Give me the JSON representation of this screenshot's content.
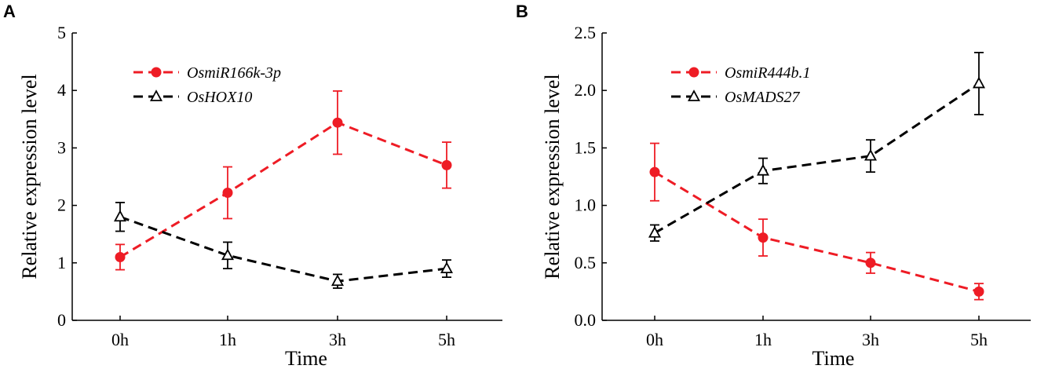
{
  "colors": {
    "red": "#ee1c25",
    "black": "#000000"
  },
  "chart_data": [
    {
      "panel": "A",
      "type": "line",
      "categories": [
        "0h",
        "1h",
        "3h",
        "5h"
      ],
      "xlabel": "Time",
      "ylabel": "Relative expression level",
      "ylim": [
        0,
        5
      ],
      "yticks": [
        "0",
        "1",
        "2",
        "3",
        "4",
        "5"
      ],
      "legend_position": "top-left",
      "series": [
        {
          "name": "OsmiR166k-3p",
          "color": "red",
          "marker": "circle",
          "values": [
            1.1,
            2.22,
            3.44,
            2.7
          ],
          "errors": [
            0.22,
            0.45,
            0.55,
            0.4
          ]
        },
        {
          "name": "OsHOX10",
          "color": "black",
          "marker": "triangle",
          "values": [
            1.8,
            1.13,
            0.68,
            0.9
          ],
          "errors": [
            0.25,
            0.23,
            0.12,
            0.15
          ]
        }
      ]
    },
    {
      "panel": "B",
      "type": "line",
      "categories": [
        "0h",
        "1h",
        "3h",
        "5h"
      ],
      "xlabel": "Time",
      "ylabel": "Relative expression level",
      "ylim": [
        0,
        2.5
      ],
      "yticks": [
        "0.0",
        "0.5",
        "1.0",
        "1.5",
        "2.0",
        "2.5"
      ],
      "legend_position": "top-left",
      "series": [
        {
          "name": "OsmiR444b.1",
          "color": "red",
          "marker": "circle",
          "values": [
            1.29,
            0.72,
            0.5,
            0.25
          ],
          "errors": [
            0.25,
            0.16,
            0.09,
            0.07
          ]
        },
        {
          "name": "OsMADS27",
          "color": "black",
          "marker": "triangle",
          "values": [
            0.76,
            1.3,
            1.43,
            2.06
          ],
          "errors": [
            0.07,
            0.11,
            0.14,
            0.27
          ]
        }
      ]
    }
  ]
}
